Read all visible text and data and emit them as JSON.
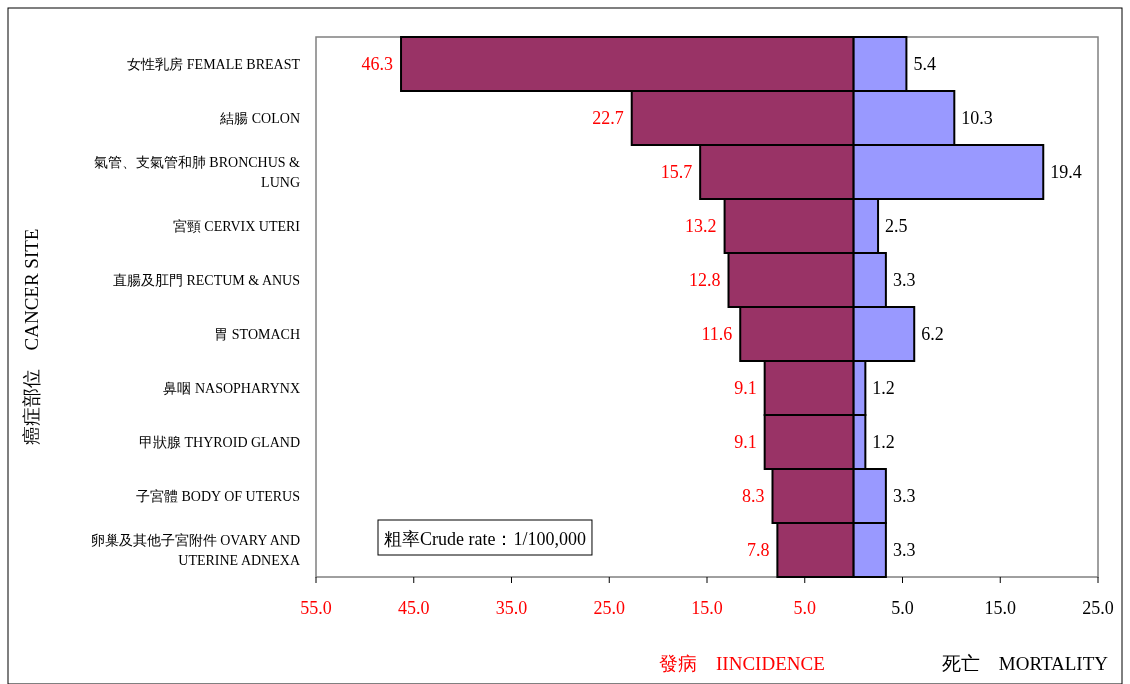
{
  "chart_data": {
    "type": "bar",
    "orientation": "horizontal",
    "ylabel": "癌症部位　CANCER SITE",
    "categories": [
      "女性乳房 FEMALE BREAST",
      "結腸 COLON",
      "氣管、支氣管和肺 BRONCHUS & LUNG",
      "宮頸 CERVIX UTERI",
      "直腸及肛門 RECTUM & ANUS",
      "胃 STOMACH",
      "鼻咽 NASOPHARYNX",
      "甲狀腺 THYROID GLAND",
      "子宮體 BODY OF UTERUS",
      "卵巢及其他子宮附件 OVARY AND UTERINE ADNEXA"
    ],
    "series": [
      {
        "color": "#993366",
        "values": [
          46.3,
          22.7,
          15.7,
          13.2,
          12.8,
          11.6,
          9.1,
          9.1,
          8.3,
          7.8
        ],
        "base": [
          -46.3,
          -22.7,
          -15.7,
          -13.2,
          -12.8,
          -11.6,
          -9.1,
          -9.1,
          -8.3,
          -7.8
        ],
        "data_labels": true
      },
      {
        "color": "#9999ff",
        "values": [
          5.4,
          10.3,
          19.4,
          2.5,
          3.3,
          6.2,
          1.2,
          1.2,
          3.3,
          3.3
        ],
        "data_labels": true
      }
    ],
    "xlim": [
      -55,
      25
    ],
    "xticks": [
      {
        "value": -55,
        "label": "55.0"
      },
      {
        "value": -45,
        "label": "45.0"
      },
      {
        "value": -35,
        "label": "35.0"
      },
      {
        "value": -25,
        "label": "25.0"
      },
      {
        "value": -15,
        "label": "15.0"
      },
      {
        "value": -5,
        "label": "5.0"
      },
      {
        "value": 5,
        "label": "5.0"
      },
      {
        "value": 15,
        "label": "15.0"
      },
      {
        "value": 25,
        "label": "25.0"
      }
    ],
    "grid": false,
    "annotations": [
      "粗率Crude rate：1/100,000",
      "發病　IINCIDENCE",
      "死亡　MORTALITY"
    ]
  }
}
